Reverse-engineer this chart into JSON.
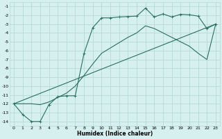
{
  "xlabel": "Humidex (Indice chaleur)",
  "bg_color": "#d6f0ef",
  "grid_color": "#b5d9d6",
  "line_color": "#2a7060",
  "xlim": [
    -0.5,
    23.5
  ],
  "ylim": [
    -14.5,
    -0.5
  ],
  "xticks": [
    0,
    1,
    2,
    3,
    4,
    5,
    6,
    7,
    8,
    9,
    10,
    11,
    12,
    13,
    14,
    15,
    16,
    17,
    18,
    19,
    20,
    21,
    22,
    23
  ],
  "yticks": [
    -14,
    -13,
    -12,
    -11,
    -10,
    -9,
    -8,
    -7,
    -6,
    -5,
    -4,
    -3,
    -2,
    -1
  ],
  "line1_x": [
    0,
    1,
    2,
    3,
    4,
    5,
    6,
    7,
    8,
    9,
    10,
    11,
    12,
    13,
    14,
    15,
    16,
    17,
    18,
    19,
    20,
    21,
    22,
    23
  ],
  "line1_y": [
    -12,
    -13.2,
    -14,
    -14,
    -12.1,
    -11.2,
    -11.1,
    -11.1,
    -6.3,
    -3.4,
    -2.3,
    -2.3,
    -2.2,
    -2.15,
    -2.1,
    -1.2,
    -2.2,
    -1.85,
    -2.2,
    -1.9,
    -1.95,
    -2.1,
    -3.5,
    -3.0
  ],
  "line2_x": [
    0,
    1,
    2,
    3,
    4,
    5,
    6,
    7,
    8,
    9,
    10,
    11,
    12,
    13,
    14,
    15,
    16,
    17,
    18,
    19,
    20,
    21,
    22,
    23
  ],
  "line2_y": [
    -12,
    -12,
    -12,
    -12.1,
    -11.8,
    -11.3,
    -10.8,
    -10.0,
    -8.8,
    -7.5,
    -6.3,
    -5.7,
    -5.1,
    -4.5,
    -4.0,
    -3.2,
    -3.5,
    -4.0,
    -4.5,
    -5.0,
    -5.5,
    -6.3,
    -7.0,
    -3.0
  ],
  "line3_x": [
    0,
    23
  ],
  "line3_y": [
    -12,
    -3.0
  ]
}
